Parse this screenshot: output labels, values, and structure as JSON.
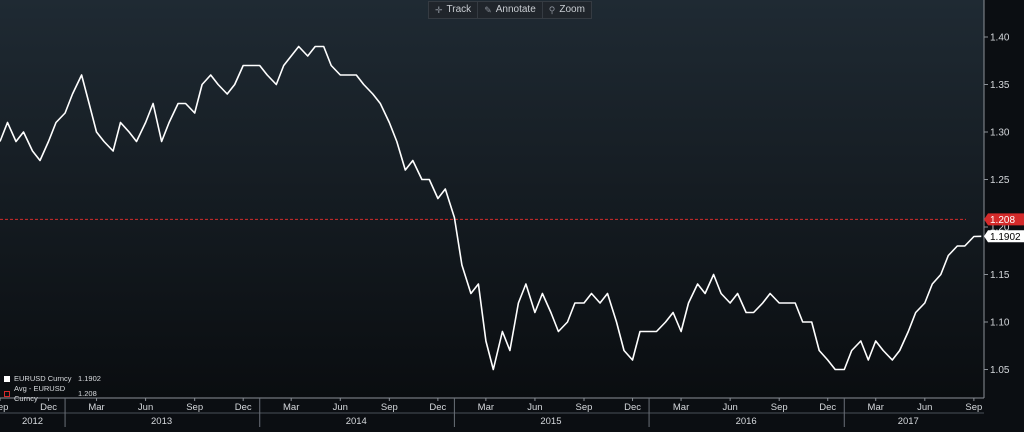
{
  "toolbar": {
    "buttons": [
      {
        "label": "Track",
        "icon": "crosshair-icon"
      },
      {
        "label": "Annotate",
        "icon": "pencil-icon"
      },
      {
        "label": "Zoom",
        "icon": "magnifier-icon"
      }
    ]
  },
  "legend": {
    "items": [
      {
        "name": "EURUSD Curncy",
        "value": "1.1902",
        "style": "solid",
        "color": "#ffffff"
      },
      {
        "name": "Avg - EURUSD Curncy",
        "value": "1.208",
        "style": "dashed",
        "color": "#d42a2a"
      }
    ]
  },
  "chart_data": {
    "type": "line",
    "title": "",
    "xlabel": "",
    "ylabel": "",
    "x_range": [
      "2012-09-01",
      "2017-09-20"
    ],
    "ylim": [
      1.02,
      1.42
    ],
    "y_ticks": [
      "1.05",
      "1.10",
      "1.15",
      "1.20",
      "1.25",
      "1.30",
      "1.35",
      "1.40"
    ],
    "x_month_ticks": [
      {
        "label": "Sep",
        "date": "2012-09-01"
      },
      {
        "label": "Dec",
        "date": "2012-12-01"
      },
      {
        "label": "Mar",
        "date": "2013-03-01"
      },
      {
        "label": "Jun",
        "date": "2013-06-01"
      },
      {
        "label": "Sep",
        "date": "2013-09-01"
      },
      {
        "label": "Dec",
        "date": "2013-12-01"
      },
      {
        "label": "Mar",
        "date": "2014-03-01"
      },
      {
        "label": "Jun",
        "date": "2014-06-01"
      },
      {
        "label": "Sep",
        "date": "2014-09-01"
      },
      {
        "label": "Dec",
        "date": "2014-12-01"
      },
      {
        "label": "Mar",
        "date": "2015-03-01"
      },
      {
        "label": "Jun",
        "date": "2015-06-01"
      },
      {
        "label": "Sep",
        "date": "2015-09-01"
      },
      {
        "label": "Dec",
        "date": "2015-12-01"
      },
      {
        "label": "Mar",
        "date": "2016-03-01"
      },
      {
        "label": "Jun",
        "date": "2016-06-01"
      },
      {
        "label": "Sep",
        "date": "2016-09-01"
      },
      {
        "label": "Dec",
        "date": "2016-12-01"
      },
      {
        "label": "Mar",
        "date": "2017-03-01"
      },
      {
        "label": "Jun",
        "date": "2017-06-01"
      },
      {
        "label": "Sep",
        "date": "2017-09-01"
      }
    ],
    "x_year_ticks": [
      {
        "label": "2012",
        "date": "2012-11-01"
      },
      {
        "label": "2013",
        "date": "2013-07-01"
      },
      {
        "label": "2014",
        "date": "2014-07-01"
      },
      {
        "label": "2015",
        "date": "2015-07-01"
      },
      {
        "label": "2016",
        "date": "2016-07-01"
      },
      {
        "label": "2017",
        "date": "2017-05-01"
      }
    ],
    "x_year_boundaries": [
      "2013-01-01",
      "2014-01-01",
      "2015-01-01",
      "2016-01-01",
      "2017-01-01"
    ],
    "series": [
      {
        "name": "EURUSD Curncy",
        "color": "#ffffff",
        "points": [
          [
            "2012-09-01",
            1.29
          ],
          [
            "2012-09-15",
            1.31
          ],
          [
            "2012-10-01",
            1.29
          ],
          [
            "2012-10-15",
            1.3
          ],
          [
            "2012-11-01",
            1.28
          ],
          [
            "2012-11-15",
            1.27
          ],
          [
            "2012-12-01",
            1.29
          ],
          [
            "2012-12-15",
            1.31
          ],
          [
            "2013-01-01",
            1.32
          ],
          [
            "2013-01-15",
            1.34
          ],
          [
            "2013-02-01",
            1.36
          ],
          [
            "2013-02-15",
            1.33
          ],
          [
            "2013-03-01",
            1.3
          ],
          [
            "2013-03-15",
            1.29
          ],
          [
            "2013-04-01",
            1.28
          ],
          [
            "2013-04-15",
            1.31
          ],
          [
            "2013-05-01",
            1.3
          ],
          [
            "2013-05-15",
            1.29
          ],
          [
            "2013-06-01",
            1.31
          ],
          [
            "2013-06-15",
            1.33
          ],
          [
            "2013-07-01",
            1.29
          ],
          [
            "2013-07-15",
            1.31
          ],
          [
            "2013-08-01",
            1.33
          ],
          [
            "2013-08-15",
            1.33
          ],
          [
            "2013-09-01",
            1.32
          ],
          [
            "2013-09-15",
            1.35
          ],
          [
            "2013-10-01",
            1.36
          ],
          [
            "2013-10-15",
            1.35
          ],
          [
            "2013-11-01",
            1.34
          ],
          [
            "2013-11-15",
            1.35
          ],
          [
            "2013-12-01",
            1.37
          ],
          [
            "2013-12-15",
            1.37
          ],
          [
            "2014-01-01",
            1.37
          ],
          [
            "2014-01-15",
            1.36
          ],
          [
            "2014-02-01",
            1.35
          ],
          [
            "2014-02-15",
            1.37
          ],
          [
            "2014-03-01",
            1.38
          ],
          [
            "2014-03-15",
            1.39
          ],
          [
            "2014-04-01",
            1.38
          ],
          [
            "2014-04-15",
            1.39
          ],
          [
            "2014-05-01",
            1.39
          ],
          [
            "2014-05-15",
            1.37
          ],
          [
            "2014-06-01",
            1.36
          ],
          [
            "2014-06-15",
            1.36
          ],
          [
            "2014-07-01",
            1.36
          ],
          [
            "2014-07-15",
            1.35
          ],
          [
            "2014-08-01",
            1.34
          ],
          [
            "2014-08-15",
            1.33
          ],
          [
            "2014-09-01",
            1.31
          ],
          [
            "2014-09-15",
            1.29
          ],
          [
            "2014-10-01",
            1.26
          ],
          [
            "2014-10-15",
            1.27
          ],
          [
            "2014-11-01",
            1.25
          ],
          [
            "2014-11-15",
            1.25
          ],
          [
            "2014-12-01",
            1.23
          ],
          [
            "2014-12-15",
            1.24
          ],
          [
            "2015-01-01",
            1.21
          ],
          [
            "2015-01-15",
            1.16
          ],
          [
            "2015-02-01",
            1.13
          ],
          [
            "2015-02-15",
            1.14
          ],
          [
            "2015-03-01",
            1.08
          ],
          [
            "2015-03-15",
            1.05
          ],
          [
            "2015-04-01",
            1.09
          ],
          [
            "2015-04-15",
            1.07
          ],
          [
            "2015-05-01",
            1.12
          ],
          [
            "2015-05-15",
            1.14
          ],
          [
            "2015-06-01",
            1.11
          ],
          [
            "2015-06-15",
            1.13
          ],
          [
            "2015-07-01",
            1.11
          ],
          [
            "2015-07-15",
            1.09
          ],
          [
            "2015-08-01",
            1.1
          ],
          [
            "2015-08-15",
            1.12
          ],
          [
            "2015-09-01",
            1.12
          ],
          [
            "2015-09-15",
            1.13
          ],
          [
            "2015-10-01",
            1.12
          ],
          [
            "2015-10-15",
            1.13
          ],
          [
            "2015-11-01",
            1.1
          ],
          [
            "2015-11-15",
            1.07
          ],
          [
            "2015-12-01",
            1.06
          ],
          [
            "2015-12-15",
            1.09
          ],
          [
            "2016-01-01",
            1.09
          ],
          [
            "2016-01-15",
            1.09
          ],
          [
            "2016-02-01",
            1.1
          ],
          [
            "2016-02-15",
            1.11
          ],
          [
            "2016-03-01",
            1.09
          ],
          [
            "2016-03-15",
            1.12
          ],
          [
            "2016-04-01",
            1.14
          ],
          [
            "2016-04-15",
            1.13
          ],
          [
            "2016-05-01",
            1.15
          ],
          [
            "2016-05-15",
            1.13
          ],
          [
            "2016-06-01",
            1.12
          ],
          [
            "2016-06-15",
            1.13
          ],
          [
            "2016-07-01",
            1.11
          ],
          [
            "2016-07-15",
            1.11
          ],
          [
            "2016-08-01",
            1.12
          ],
          [
            "2016-08-15",
            1.13
          ],
          [
            "2016-09-01",
            1.12
          ],
          [
            "2016-09-15",
            1.12
          ],
          [
            "2016-10-01",
            1.12
          ],
          [
            "2016-10-15",
            1.1
          ],
          [
            "2016-11-01",
            1.1
          ],
          [
            "2016-11-15",
            1.07
          ],
          [
            "2016-12-01",
            1.06
          ],
          [
            "2016-12-15",
            1.05
          ],
          [
            "2017-01-01",
            1.05
          ],
          [
            "2017-01-15",
            1.07
          ],
          [
            "2017-02-01",
            1.08
          ],
          [
            "2017-02-15",
            1.06
          ],
          [
            "2017-03-01",
            1.08
          ],
          [
            "2017-03-15",
            1.07
          ],
          [
            "2017-04-01",
            1.06
          ],
          [
            "2017-04-15",
            1.07
          ],
          [
            "2017-05-01",
            1.09
          ],
          [
            "2017-05-15",
            1.11
          ],
          [
            "2017-06-01",
            1.12
          ],
          [
            "2017-06-15",
            1.14
          ],
          [
            "2017-07-01",
            1.15
          ],
          [
            "2017-07-15",
            1.17
          ],
          [
            "2017-08-01",
            1.18
          ],
          [
            "2017-08-15",
            1.18
          ],
          [
            "2017-09-01",
            1.19
          ],
          [
            "2017-09-15",
            1.1902
          ]
        ]
      },
      {
        "name": "Avg - EURUSD Curncy",
        "color": "#d42a2a",
        "style": "dashed",
        "constant": 1.208
      }
    ],
    "price_tags": [
      {
        "label": "1.208",
        "value": 1.208,
        "bg": "#d42a2a",
        "fg": "#ffffff"
      },
      {
        "label": "1.1902",
        "value": 1.1902,
        "bg": "#ffffff",
        "fg": "#000000"
      }
    ],
    "grid": false,
    "legend_position": "bottom-left"
  }
}
